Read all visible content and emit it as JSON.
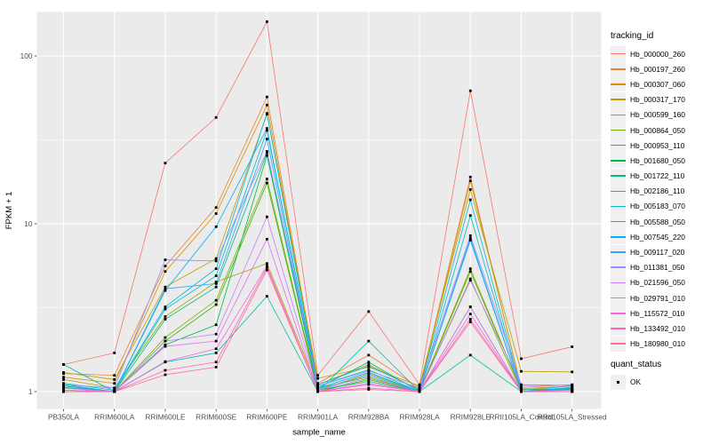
{
  "figure": {
    "background": "#FFFFFF",
    "panel_background": "#EBEBEB",
    "gridline_color": "#FFFFFF",
    "tick_label_color": "#4D4D4D",
    "point_color": "#000000"
  },
  "chart_data": {
    "type": "line",
    "title": "",
    "xlabel": "sample_name",
    "ylabel": "FPKM + 1",
    "y_scale": "log10",
    "y_ticks": [
      1,
      10,
      100
    ],
    "y_tick_labels": [
      "1",
      "10",
      "100"
    ],
    "y_minor_ticks": [
      3.162,
      31.62
    ],
    "ylim": [
      0.79,
      182
    ],
    "grid": "on",
    "legend": {
      "title": "tracking_id",
      "position": "right"
    },
    "quant_status": {
      "title": "quant_status",
      "entries": [
        {
          "label": "OK",
          "marker": "black-square"
        }
      ]
    },
    "categories": [
      "PB350LA",
      "RRIM600LA",
      "RRIM600LE",
      "RRIM600SE",
      "RRIM600PE",
      "RRIM901LA",
      "RRIM928BA",
      "RRIM928LA",
      "RRIM928LE",
      "RRII105LA_Control",
      "RRII105LA_Stressed"
    ],
    "series": [
      {
        "name": "Hb_000000_260",
        "color": "#F8766D",
        "values": [
          1.45,
          1.7,
          23,
          43,
          160,
          1.25,
          3.0,
          1.1,
          62,
          1.57,
          1.85
        ]
      },
      {
        "name": "Hb_000197_260",
        "color": "#EA8331",
        "values": [
          1.28,
          1.25,
          5.6,
          12.5,
          57,
          1.12,
          1.65,
          1.05,
          19,
          1.04,
          1.08
        ]
      },
      {
        "name": "Hb_000307_060",
        "color": "#D89000",
        "values": [
          1.22,
          1.12,
          5.2,
          11.5,
          51,
          1.1,
          1.45,
          1.02,
          18,
          1.06,
          1.1
        ]
      },
      {
        "name": "Hb_000317_170",
        "color": "#C09B00",
        "values": [
          1.3,
          1.18,
          4.2,
          6.2,
          45,
          1.2,
          1.4,
          1.08,
          16,
          1.32,
          1.31
        ]
      },
      {
        "name": "Hb_000599_160",
        "color": "#A3A500",
        "values": [
          1.18,
          1.05,
          2.8,
          4.5,
          5.8,
          1.05,
          1.22,
          1.0,
          5.4,
          1.02,
          1.05
        ]
      },
      {
        "name": "Hb_000864_050",
        "color": "#7CAE00",
        "values": [
          1.08,
          1.0,
          2.1,
          3.5,
          18.5,
          1.02,
          1.28,
          1.0,
          4.7,
          1.0,
          1.04
        ]
      },
      {
        "name": "Hb_000953_110",
        "color": "#39B600",
        "values": [
          1.05,
          1.0,
          2.0,
          3.3,
          17.5,
          1.0,
          1.18,
          1.0,
          5.2,
          1.03,
          1.02
        ]
      },
      {
        "name": "Hb_001680_050",
        "color": "#00BB4E",
        "values": [
          1.02,
          1.0,
          1.9,
          2.5,
          25.5,
          1.02,
          1.15,
          1.0,
          3.2,
          1.0,
          1.0
        ]
      },
      {
        "name": "Hb_001722_110",
        "color": "#00BF7D",
        "values": [
          1.06,
          1.0,
          2.7,
          4.2,
          26.5,
          1.05,
          1.5,
          1.0,
          8.0,
          1.0,
          1.05
        ]
      },
      {
        "name": "Hb_002186_110",
        "color": "#00C1A3",
        "values": [
          1.45,
          1.0,
          1.5,
          1.7,
          3.7,
          1.0,
          2.0,
          1.0,
          1.65,
          1.0,
          1.04
        ]
      },
      {
        "name": "Hb_005183_070",
        "color": "#00BFC4",
        "values": [
          1.1,
          1.0,
          3.1,
          4.9,
          36,
          1.08,
          1.35,
          1.0,
          11.2,
          1.0,
          1.06
        ]
      },
      {
        "name": "Hb_005588_050",
        "color": "#00BBDA",
        "values": [
          1.12,
          1.02,
          3.2,
          5.4,
          45.5,
          1.1,
          1.42,
          1.03,
          13.9,
          1.02,
          1.08
        ]
      },
      {
        "name": "Hb_007545_220",
        "color": "#00B0F6",
        "values": [
          1.08,
          1.0,
          4.0,
          9.6,
          37,
          1.05,
          1.3,
          1.0,
          8.2,
          1.0,
          1.05
        ]
      },
      {
        "name": "Hb_009117_020",
        "color": "#35A2FF",
        "values": [
          1.05,
          1.0,
          4.1,
          4.4,
          32,
          1.03,
          1.25,
          1.0,
          8.0,
          1.0,
          1.03
        ]
      },
      {
        "name": "Hb_011381_050",
        "color": "#9590FF",
        "values": [
          1.1,
          1.05,
          6.1,
          6.0,
          27,
          1.08,
          1.33,
          1.05,
          8.5,
          1.1,
          1.09
        ]
      },
      {
        "name": "Hb_021596_050",
        "color": "#C77CFF",
        "values": [
          1.05,
          1.0,
          2.0,
          2.2,
          11.0,
          1.02,
          1.2,
          1.0,
          4.6,
          1.09,
          1.09
        ]
      },
      {
        "name": "Hb_029791_010",
        "color": "#E76BF3",
        "values": [
          1.0,
          1.0,
          1.86,
          2.0,
          8.1,
          1.0,
          1.12,
          1.0,
          3.2,
          1.0,
          1.02
        ]
      },
      {
        "name": "Hb_115572_010",
        "color": "#FA62DB",
        "values": [
          1.02,
          1.0,
          1.51,
          1.8,
          5.6,
          1.0,
          1.1,
          1.0,
          2.9,
          1.0,
          1.0
        ]
      },
      {
        "name": "Hb_133492_010",
        "color": "#FF62BC",
        "values": [
          1.0,
          1.0,
          1.34,
          1.5,
          5.5,
          1.0,
          1.05,
          1.0,
          2.7,
          1.0,
          1.0
        ]
      },
      {
        "name": "Hb_180980_010",
        "color": "#FF6A98",
        "values": [
          1.0,
          1.0,
          1.26,
          1.4,
          5.3,
          1.0,
          1.03,
          1.0,
          2.6,
          1.0,
          1.0
        ]
      }
    ]
  }
}
